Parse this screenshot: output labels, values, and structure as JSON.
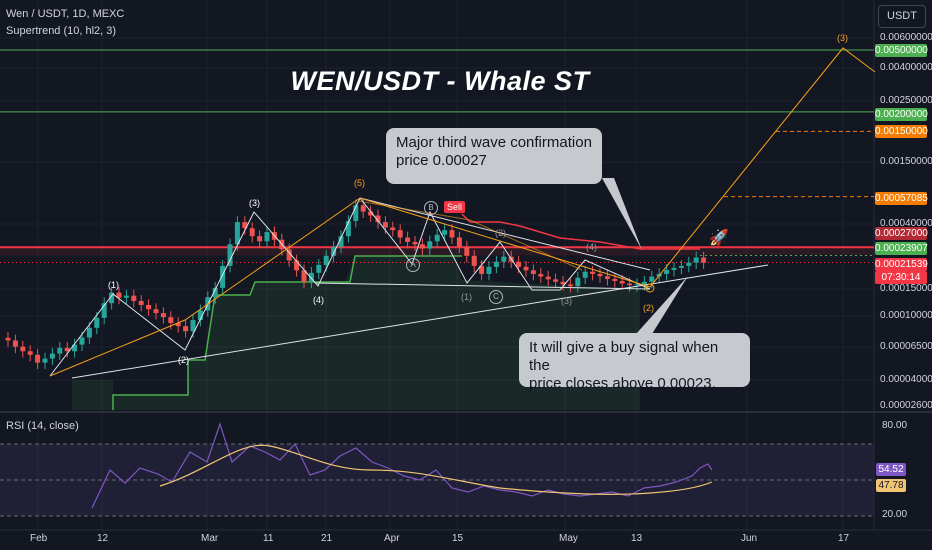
{
  "header": {
    "symbol_line": "Wen / USDT, 1D, MEXC",
    "indicator_line": "Supertrend (10, hl2, 3)",
    "rsi_line": "RSI (14, close)",
    "currency_button": "USDT"
  },
  "chart_title": "WEN/USDT - Whale ST",
  "annotations": {
    "callout_top": [
      "Major third wave confirmation",
      "price 0.00027"
    ],
    "callout_bottom": [
      "It will give a buy signal when the",
      "price closes above 0.00023."
    ],
    "sell_label": "Sell"
  },
  "waves": {
    "w1": "(1)",
    "w2": "(2)",
    "w3": "(3)",
    "w4": "(4)",
    "w5": "(5)",
    "a": "A",
    "b": "B",
    "c": "C",
    "sub1": "(1)",
    "sub2": "(2)",
    "sub3": "(3)",
    "sub4": "(4)",
    "big2": "(2)",
    "target3": "(3)"
  },
  "price_axis": {
    "ticks": [
      "0.00600000",
      "0.00400000",
      "0.00250000",
      "0.00150000",
      "0.00040000",
      "0.00015000",
      "0.00010000",
      "0.00006500",
      "0.00004000",
      "0.00002600"
    ],
    "tags": [
      {
        "text": "0.00500000",
        "color": "#4caf50"
      },
      {
        "text": "0.00200000",
        "color": "#4caf50"
      },
      {
        "text": "0.00150000",
        "color": "#f57c00"
      },
      {
        "text": "0.00057085",
        "color": "#f57c00"
      },
      {
        "text": "0.00027000",
        "color": "#b22833"
      },
      {
        "text": "0.00023907",
        "color": "#4caf50"
      },
      {
        "text": "0.00021539",
        "color": "#f23645"
      },
      {
        "text": "07:30:14",
        "color": "#f23645"
      }
    ]
  },
  "rsi_axis": {
    "ticks": [
      "80.00",
      "20.00"
    ],
    "tags": [
      {
        "text": "54.52",
        "color": "#7e57c2"
      },
      {
        "text": "47.78",
        "color": "#f0c674"
      }
    ]
  },
  "time_axis": [
    "Feb",
    "12",
    "Mar",
    "11",
    "21",
    "Apr",
    "15",
    "May",
    "13",
    "Jun",
    "17"
  ],
  "colors": {
    "background": "#131722",
    "bull": "#26a69a",
    "bear": "#ef5350",
    "supertrend_up": "#4caf50",
    "supertrend_down": "#f23645",
    "wave_line": "#e0e3eb",
    "projection": "#f7a21b",
    "rsi": "#7e57c2",
    "rsi_ma": "#f0c674"
  },
  "chart_data": {
    "type": "candlestick",
    "title": "WEN/USDT - Whale ST",
    "y_scale": "log",
    "ylim": [
      2.5e-05,
      0.0085
    ],
    "x_ticks": [
      "Feb",
      "12",
      "Mar",
      "11",
      "21",
      "Apr",
      "15",
      "May",
      "13",
      "Jun",
      "17"
    ],
    "candles_approx_close": [
      6.8e-05,
      6.2e-05,
      5.8e-05,
      5.5e-05,
      4.9e-05,
      5.2e-05,
      5.6e-05,
      6.1e-05,
      5.8e-05,
      6.4e-05,
      7.1e-05,
      8.2e-05,
      9.5e-05,
      0.000118,
      0.000138,
      0.000128,
      0.000132,
      0.000122,
      0.000115,
      0.000108,
      0.000102,
      9.6e-05,
      8.8e-05,
      8.4e-05,
      7.8e-05,
      9.2e-05,
      0.000106,
      0.000129,
      0.000148,
      0.000205,
      0.000282,
      0.000392,
      0.000358,
      0.000318,
      0.000295,
      0.000338,
      0.000302,
      0.000262,
      0.000222,
      0.000192,
      0.000162,
      0.000185,
      0.000208,
      0.000238,
      0.000272,
      0.000318,
      0.000398,
      0.000502,
      0.000458,
      0.000432,
      0.000392,
      0.000362,
      0.000348,
      0.000312,
      0.000292,
      0.000282,
      0.000265,
      0.000295,
      0.000325,
      0.000348,
      0.000312,
      0.000272,
      0.000238,
      0.000205,
      0.000182,
      0.000202,
      0.000218,
      0.000235,
      0.000218,
      0.000202,
      0.000192,
      0.000182,
      0.000175,
      0.000168,
      0.000162,
      0.000156,
      0.000152,
      0.000172,
      0.000188,
      0.000182,
      0.000176,
      0.000169,
      0.000164,
      0.000158,
      0.000154,
      0.000156,
      0.000162,
      0.000175,
      0.000182,
      0.000193,
      0.000199,
      0.000205,
      0.000215,
      0.000232,
      0.000215
    ],
    "horizontal_levels": [
      0.005,
      0.002,
      0.0015,
      0.00057085,
      0.00027,
      0.00023907,
      0.00021539
    ],
    "rsi": {
      "last": 54.52,
      "ma_last": 47.78,
      "ylim": [
        0,
        100
      ]
    }
  }
}
